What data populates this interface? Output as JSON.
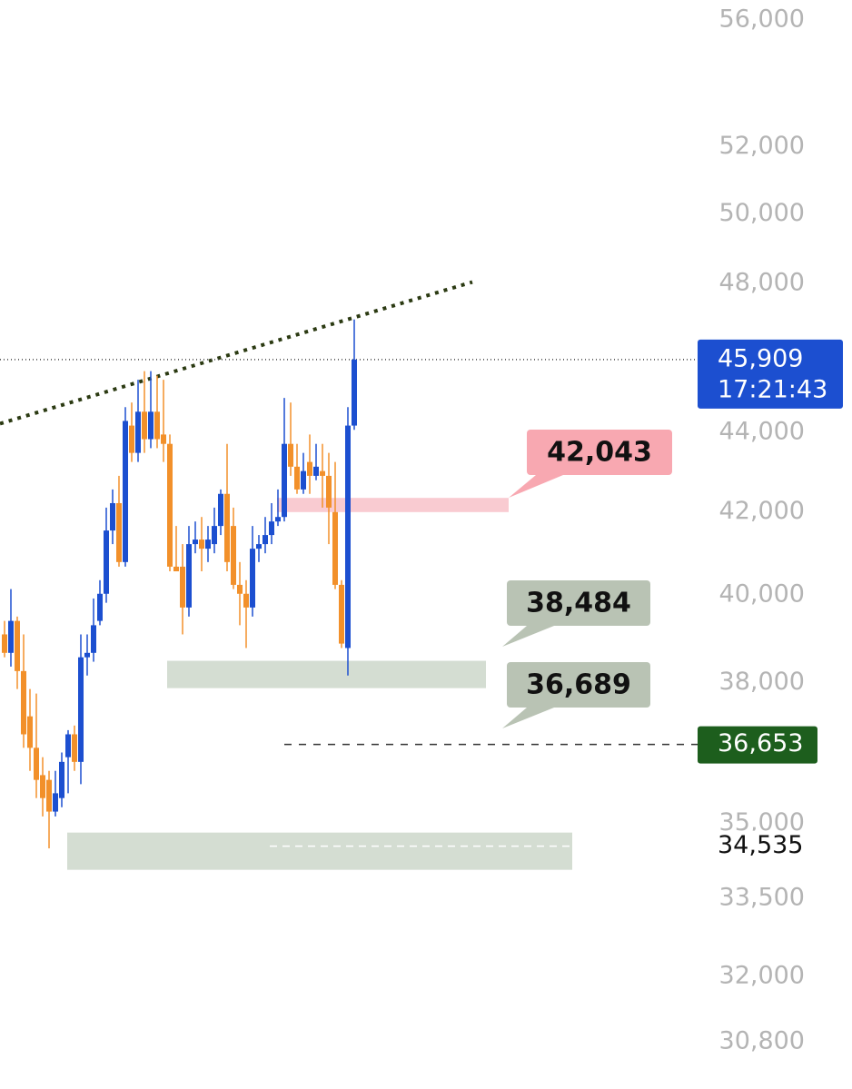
{
  "chart_data": {
    "type": "candlestick",
    "log_scale": true,
    "ylim": [
      29960,
      56660
    ],
    "yticks": [
      {
        "value": 56000,
        "label": "56,000"
      },
      {
        "value": 52000,
        "label": "52,000"
      },
      {
        "value": 50000,
        "label": "50,000"
      },
      {
        "value": 48000,
        "label": "48,000"
      },
      {
        "value": 44000,
        "label": "44,000"
      },
      {
        "value": 42000,
        "label": "42,000"
      },
      {
        "value": 40000,
        "label": "40,000"
      },
      {
        "value": 38000,
        "label": "38,000"
      },
      {
        "value": 35000,
        "label": "35,000"
      },
      {
        "value": 33500,
        "label": "33,500"
      },
      {
        "value": 32000,
        "label": "32,000"
      },
      {
        "value": 30800,
        "label": "30,800"
      }
    ],
    "up_color": "#1c4fd0",
    "down_color": "#f2902a",
    "open": [
      39090,
      38670,
      39400,
      38260,
      37260,
      36580,
      36000,
      35900,
      35240,
      35520,
      36380,
      36870,
      36280,
      38570,
      38670,
      39400,
      40030,
      41540,
      42210,
      40780,
      44170,
      43470,
      44530,
      43820,
      44530,
      43940,
      43700,
      40670,
      40670,
      39710,
      41210,
      41320,
      41100,
      41210,
      41650,
      42440,
      41650,
      40240,
      40030,
      39710,
      41100,
      41210,
      41430,
      41760,
      41870,
      43700,
      43120,
      42550,
      43240,
      42890,
      43010,
      42890,
      41990,
      40240,
      38780,
      44170
    ],
    "high": [
      39400,
      40140,
      39500,
      39090,
      37860,
      37760,
      36380,
      36090,
      36090,
      36480,
      36960,
      37060,
      39090,
      39090,
      39920,
      40350,
      42100,
      42550,
      42890,
      44650,
      44770,
      45370,
      45600,
      45600,
      45480,
      45370,
      43940,
      41650,
      41210,
      41650,
      41760,
      41870,
      41650,
      42100,
      42550,
      43700,
      42100,
      40780,
      40350,
      41650,
      41430,
      41870,
      42210,
      42550,
      44890,
      44770,
      43700,
      43470,
      43940,
      43700,
      43700,
      43470,
      43240,
      40350,
      44650,
      47000
    ],
    "low": [
      38570,
      38360,
      37860,
      36580,
      36090,
      35520,
      35140,
      34490,
      35140,
      35330,
      35620,
      36090,
      35810,
      38160,
      38470,
      39300,
      39820,
      41210,
      40670,
      40670,
      43240,
      43240,
      43470,
      43590,
      43590,
      43240,
      40560,
      40560,
      39090,
      39500,
      40990,
      40560,
      40780,
      40990,
      41430,
      40560,
      40140,
      39300,
      38780,
      39500,
      40780,
      40990,
      41210,
      41650,
      41760,
      42890,
      42440,
      42440,
      42440,
      42780,
      42100,
      41210,
      40140,
      38780,
      38160,
      44060
    ],
    "close": [
      38670,
      39400,
      38260,
      36870,
      36580,
      35900,
      35520,
      35240,
      35620,
      36280,
      36870,
      36280,
      38570,
      38670,
      39300,
      40030,
      41540,
      42210,
      40780,
      44290,
      43470,
      44530,
      43820,
      44530,
      43820,
      43700,
      40670,
      40560,
      39710,
      41210,
      41320,
      41100,
      41320,
      41650,
      42440,
      40780,
      40240,
      40030,
      39710,
      41100,
      41210,
      41430,
      41760,
      41870,
      43700,
      43120,
      42550,
      43010,
      42890,
      43120,
      42890,
      42100,
      40240,
      38880,
      44170,
      45909
    ],
    "trendline": {
      "start": 44220,
      "end": 48040,
      "color": "#2b3a12"
    },
    "zones": [
      {
        "low": 41990,
        "high": 42340,
        "color": "#f9cbd1"
      },
      {
        "low": 37880,
        "high": 38490,
        "color": "#d4ddd2"
      },
      {
        "low": 34060,
        "high": 34810,
        "color": "#d4ddd2"
      }
    ],
    "levels": [
      {
        "value": 45909,
        "label": "45,909",
        "time": "17:21:43",
        "color": "#1c4fd0"
      },
      {
        "value": 36653,
        "label": "36,653",
        "color": "#1d5e1d"
      },
      {
        "value": 34535,
        "label": "34,535"
      }
    ],
    "callouts": [
      {
        "text": "42,043",
        "color": "#f8a8b1"
      },
      {
        "text": "38,484",
        "color": "#b9c3b4"
      },
      {
        "text": "36,689",
        "color": "#b9c3b4"
      }
    ]
  }
}
